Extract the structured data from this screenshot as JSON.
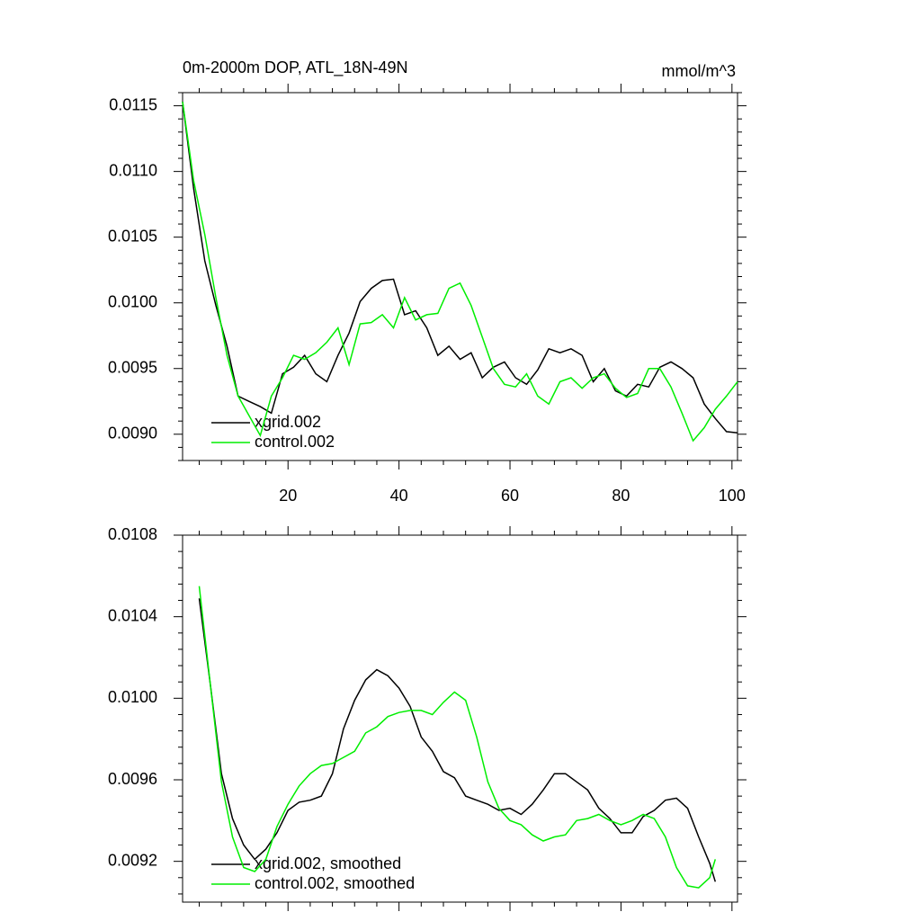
{
  "chart_data": [
    {
      "type": "line",
      "title": "0m-2000m DOP, ATL_18N-49N",
      "subtitle": "mmol/m^3",
      "x": [
        1,
        3,
        5,
        7,
        9,
        11,
        13,
        15,
        17,
        19,
        21,
        23,
        25,
        27,
        29,
        31,
        33,
        35,
        37,
        39,
        41,
        43,
        45,
        47,
        49,
        51,
        53,
        55,
        57,
        59,
        61,
        63,
        65,
        67,
        69,
        71,
        73,
        75,
        77,
        79,
        81,
        83,
        85,
        87,
        89,
        91,
        93,
        95,
        97,
        99,
        101
      ],
      "series": [
        {
          "name": "xgrid.002",
          "color": "#000000",
          "values": [
            0.01153,
            0.01087,
            0.01032,
            0.00998,
            0.00967,
            0.00929,
            0.00925,
            0.00921,
            0.00916,
            0.00946,
            0.00951,
            0.0096,
            0.00946,
            0.0094,
            0.0096,
            0.00977,
            0.01001,
            0.01011,
            0.01017,
            0.01018,
            0.00991,
            0.00994,
            0.00981,
            0.0096,
            0.00967,
            0.00957,
            0.00962,
            0.00943,
            0.00951,
            0.00955,
            0.00943,
            0.00938,
            0.00949,
            0.00965,
            0.00962,
            0.00965,
            0.0096,
            0.0094,
            0.0095,
            0.00933,
            0.00929,
            0.00938,
            0.00936,
            0.00951,
            0.00955,
            0.0095,
            0.00943,
            0.00923,
            0.00912,
            0.00902,
            0.00901
          ]
        },
        {
          "name": "control.002",
          "color": "#00ee00",
          "values": [
            0.01153,
            0.01093,
            0.01052,
            0.01004,
            0.0096,
            0.00929,
            0.00914,
            0.00899,
            0.00929,
            0.00943,
            0.0096,
            0.00957,
            0.00962,
            0.0097,
            0.00981,
            0.00953,
            0.00984,
            0.00985,
            0.00991,
            0.00981,
            0.01004,
            0.00987,
            0.00991,
            0.00992,
            0.01011,
            0.01015,
            0.00998,
            0.00974,
            0.0095,
            0.00938,
            0.00936,
            0.00946,
            0.00929,
            0.00923,
            0.0094,
            0.00943,
            0.00935,
            0.00943,
            0.00946,
            0.00935,
            0.00928,
            0.00931,
            0.0095,
            0.0095,
            0.00936,
            0.00916,
            0.00895,
            0.00905,
            0.00919,
            0.00929,
            0.0094
          ]
        }
      ],
      "xlim": [
        1,
        101
      ],
      "xticks": [
        20,
        40,
        60,
        80,
        100
      ],
      "xtick_labels": true,
      "ylim": [
        0.0088,
        0.0116
      ],
      "yticks": [
        0.009,
        0.0095,
        {
          "value": 0.01,
          "label": "0.0100"
        },
        0.0105,
        {
          "value": 0.011,
          "label": "0.0110"
        },
        0.0115
      ],
      "yticks_fixed": [
        {
          "value": 0.009,
          "label": "0.0090"
        }
      ],
      "legend": "lower left"
    },
    {
      "type": "line",
      "x": [
        4,
        6,
        8,
        10,
        12,
        14,
        16,
        18,
        20,
        22,
        24,
        26,
        28,
        30,
        32,
        34,
        36,
        38,
        40,
        42,
        44,
        46,
        48,
        50,
        52,
        54,
        56,
        58,
        60,
        62,
        64,
        66,
        68,
        70,
        72,
        74,
        76,
        78,
        80,
        82,
        84,
        86,
        88,
        90,
        92,
        94,
        96,
        97
      ],
      "series": [
        {
          "name": "xgrid.002, smoothed",
          "color": "#000000",
          "values": [
            0.01049,
            0.01007,
            0.00963,
            0.00941,
            0.00928,
            0.00921,
            0.00926,
            0.00934,
            0.00945,
            0.00949,
            0.0095,
            0.00952,
            0.00963,
            0.00985,
            0.00999,
            0.01009,
            0.01014,
            0.01011,
            0.01005,
            0.00996,
            0.00981,
            0.00974,
            0.00964,
            0.00961,
            0.00952,
            0.0095,
            0.00948,
            0.00945,
            0.00946,
            0.00943,
            0.00948,
            0.00955,
            0.00963,
            0.00963,
            0.00959,
            0.00955,
            0.00946,
            0.00941,
            0.00934,
            0.00934,
            0.00942,
            0.00945,
            0.0095,
            0.00951,
            0.00946,
            0.00932,
            0.00919,
            0.0091
          ]
        },
        {
          "name": "control.002, smoothed",
          "color": "#00ee00",
          "values": [
            0.01055,
            0.01007,
            0.00959,
            0.00932,
            0.00917,
            0.00915,
            0.00921,
            0.00937,
            0.00948,
            0.00957,
            0.00963,
            0.00967,
            0.00968,
            0.00971,
            0.00974,
            0.00983,
            0.00986,
            0.00991,
            0.00993,
            0.00994,
            0.00994,
            0.00992,
            0.00998,
            0.01003,
            0.00999,
            0.00981,
            0.00959,
            0.00946,
            0.0094,
            0.00938,
            0.00933,
            0.0093,
            0.00932,
            0.00933,
            0.0094,
            0.00941,
            0.00943,
            0.0094,
            0.00938,
            0.0094,
            0.00943,
            0.00941,
            0.00932,
            0.00917,
            0.00908,
            0.00907,
            0.00912,
            0.00921
          ]
        }
      ],
      "xlim": [
        1,
        101
      ],
      "xticks": [
        20,
        40,
        60,
        80,
        100
      ],
      "xtick_labels": false,
      "ylim": [
        0.009,
        0.0108
      ],
      "yticks": [
        0.0092,
        0.0096,
        {
          "value": 0.01,
          "label": "0.0100"
        },
        0.0104,
        0.0108
      ],
      "legend": "lower left"
    }
  ]
}
